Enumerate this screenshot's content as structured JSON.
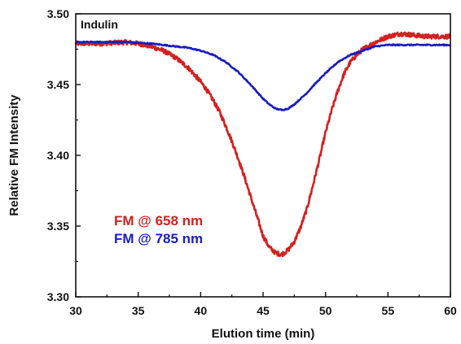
{
  "chart_data": {
    "type": "line",
    "title": "Indulin",
    "xlabel": "Elution time (min)",
    "ylabel": "Relative FM Intensity",
    "xlim": [
      30,
      60
    ],
    "ylim": [
      3.3,
      3.5
    ],
    "xticks": [
      "30",
      "35",
      "40",
      "45",
      "50",
      "55",
      "60"
    ],
    "yticks": [
      "3.30",
      "3.35",
      "3.40",
      "3.45",
      "3.50"
    ],
    "grid": false,
    "legend_position": "left-lower",
    "series": [
      {
        "name": "FM @ 658 nm",
        "color": "#d42020",
        "noisy": true,
        "x": [
          30,
          32,
          34,
          35,
          36,
          37,
          38,
          39,
          40,
          40.5,
          41,
          41.5,
          42,
          42.5,
          43,
          43.5,
          44,
          44.5,
          45,
          45.5,
          46,
          46.5,
          47,
          47.5,
          48,
          48.5,
          49,
          49.5,
          50,
          50.5,
          51,
          51.5,
          52,
          52.5,
          53,
          54,
          55,
          56,
          57,
          58,
          59,
          60
        ],
        "y": [
          3.479,
          3.479,
          3.48,
          3.479,
          3.477,
          3.474,
          3.469,
          3.462,
          3.452,
          3.446,
          3.439,
          3.431,
          3.421,
          3.41,
          3.398,
          3.385,
          3.371,
          3.357,
          3.343,
          3.335,
          3.331,
          3.33,
          3.333,
          3.339,
          3.349,
          3.362,
          3.379,
          3.397,
          3.416,
          3.432,
          3.446,
          3.458,
          3.466,
          3.471,
          3.475,
          3.48,
          3.484,
          3.486,
          3.485,
          3.484,
          3.484,
          3.484
        ]
      },
      {
        "name": "FM @ 785 nm",
        "color": "#1c1cc0",
        "noisy": false,
        "x": [
          30,
          32,
          34,
          36,
          38,
          39,
          40,
          41,
          42,
          43,
          44,
          44.5,
          45,
          45.5,
          46,
          46.5,
          47,
          47.5,
          48,
          48.5,
          49,
          50,
          51,
          52,
          53,
          54,
          55,
          56,
          58,
          60
        ],
        "y": [
          3.48,
          3.48,
          3.48,
          3.479,
          3.477,
          3.476,
          3.474,
          3.471,
          3.466,
          3.459,
          3.45,
          3.445,
          3.44,
          3.436,
          3.433,
          3.432,
          3.433,
          3.436,
          3.44,
          3.444,
          3.449,
          3.458,
          3.466,
          3.471,
          3.474,
          3.477,
          3.478,
          3.478,
          3.478,
          3.478
        ]
      }
    ]
  }
}
